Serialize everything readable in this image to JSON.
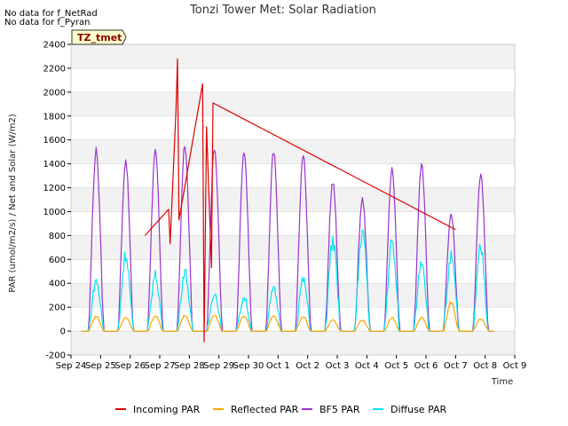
{
  "no_data_notes": [
    "No data for f_NetRad",
    "No data for f_Pyran"
  ],
  "badge": "TZ_tmet",
  "chart_data": {
    "type": "line",
    "title": "Tonzi Tower Met: Solar Radiation",
    "xlabel": "Time",
    "ylabel": "PAR (umol/m2/s) / Net and Solar (W/m2)",
    "xlim": [
      0,
      15
    ],
    "ylim": [
      -200,
      2400
    ],
    "x_ticks": [
      {
        "x": 0,
        "label": "Sep 24"
      },
      {
        "x": 1,
        "label": "Sep 25"
      },
      {
        "x": 2,
        "label": "Sep 26"
      },
      {
        "x": 3,
        "label": "Sep 27"
      },
      {
        "x": 4,
        "label": "Sep 28"
      },
      {
        "x": 5,
        "label": "Sep 29"
      },
      {
        "x": 6,
        "label": "Sep 30"
      },
      {
        "x": 7,
        "label": "Oct 1"
      },
      {
        "x": 8,
        "label": "Oct 2"
      },
      {
        "x": 9,
        "label": "Oct 3"
      },
      {
        "x": 10,
        "label": "Oct 4"
      },
      {
        "x": 11,
        "label": "Oct 5"
      },
      {
        "x": 12,
        "label": "Oct 6"
      },
      {
        "x": 13,
        "label": "Oct 7"
      },
      {
        "x": 14,
        "label": "Oct 8"
      },
      {
        "x": 15,
        "label": "Oct 9"
      }
    ],
    "y_ticks": [
      -200,
      0,
      200,
      400,
      600,
      800,
      1000,
      1200,
      1400,
      1600,
      1800,
      2000,
      2200,
      2400
    ],
    "grid_bands": true,
    "legend_position": "bottom-center",
    "daily_peaks_day_offset": [
      0.85,
      1.85,
      2.85,
      3.85,
      4.85,
      5.85,
      6.85,
      7.85,
      8.85,
      9.85,
      10.85,
      11.85,
      12.85,
      13.85
    ],
    "series": [
      {
        "name": "Incoming PAR",
        "color": "#dd0000",
        "points": [
          [
            2.5,
            800
          ],
          [
            3.3,
            1020
          ],
          [
            3.35,
            730
          ],
          [
            3.55,
            1850
          ],
          [
            3.6,
            2280
          ],
          [
            3.65,
            930
          ],
          [
            4.45,
            2070
          ],
          [
            4.5,
            -90
          ],
          [
            4.58,
            1710
          ],
          [
            4.75,
            530
          ],
          [
            4.8,
            1910
          ],
          [
            13.0,
            850
          ]
        ]
      },
      {
        "name": "Reflected PAR",
        "color": "#ffa500",
        "daily_peaks": [
          125,
          115,
          125,
          130,
          130,
          125,
          125,
          120,
          95,
          90,
          110,
          110,
          240,
          100
        ]
      },
      {
        "name": "BF5 PAR",
        "color": "#9932cc",
        "daily_peaks": [
          1510,
          1420,
          1500,
          1550,
          1520,
          1520,
          1500,
          1480,
          1250,
          1100,
          1360,
          1400,
          980,
          1300
        ]
      },
      {
        "name": "Diffuse PAR",
        "color": "#00e5ee",
        "daily_peaks": [
          420,
          640,
          470,
          500,
          320,
          280,
          350,
          430,
          750,
          840,
          740,
          600,
          620,
          690
        ]
      }
    ]
  }
}
